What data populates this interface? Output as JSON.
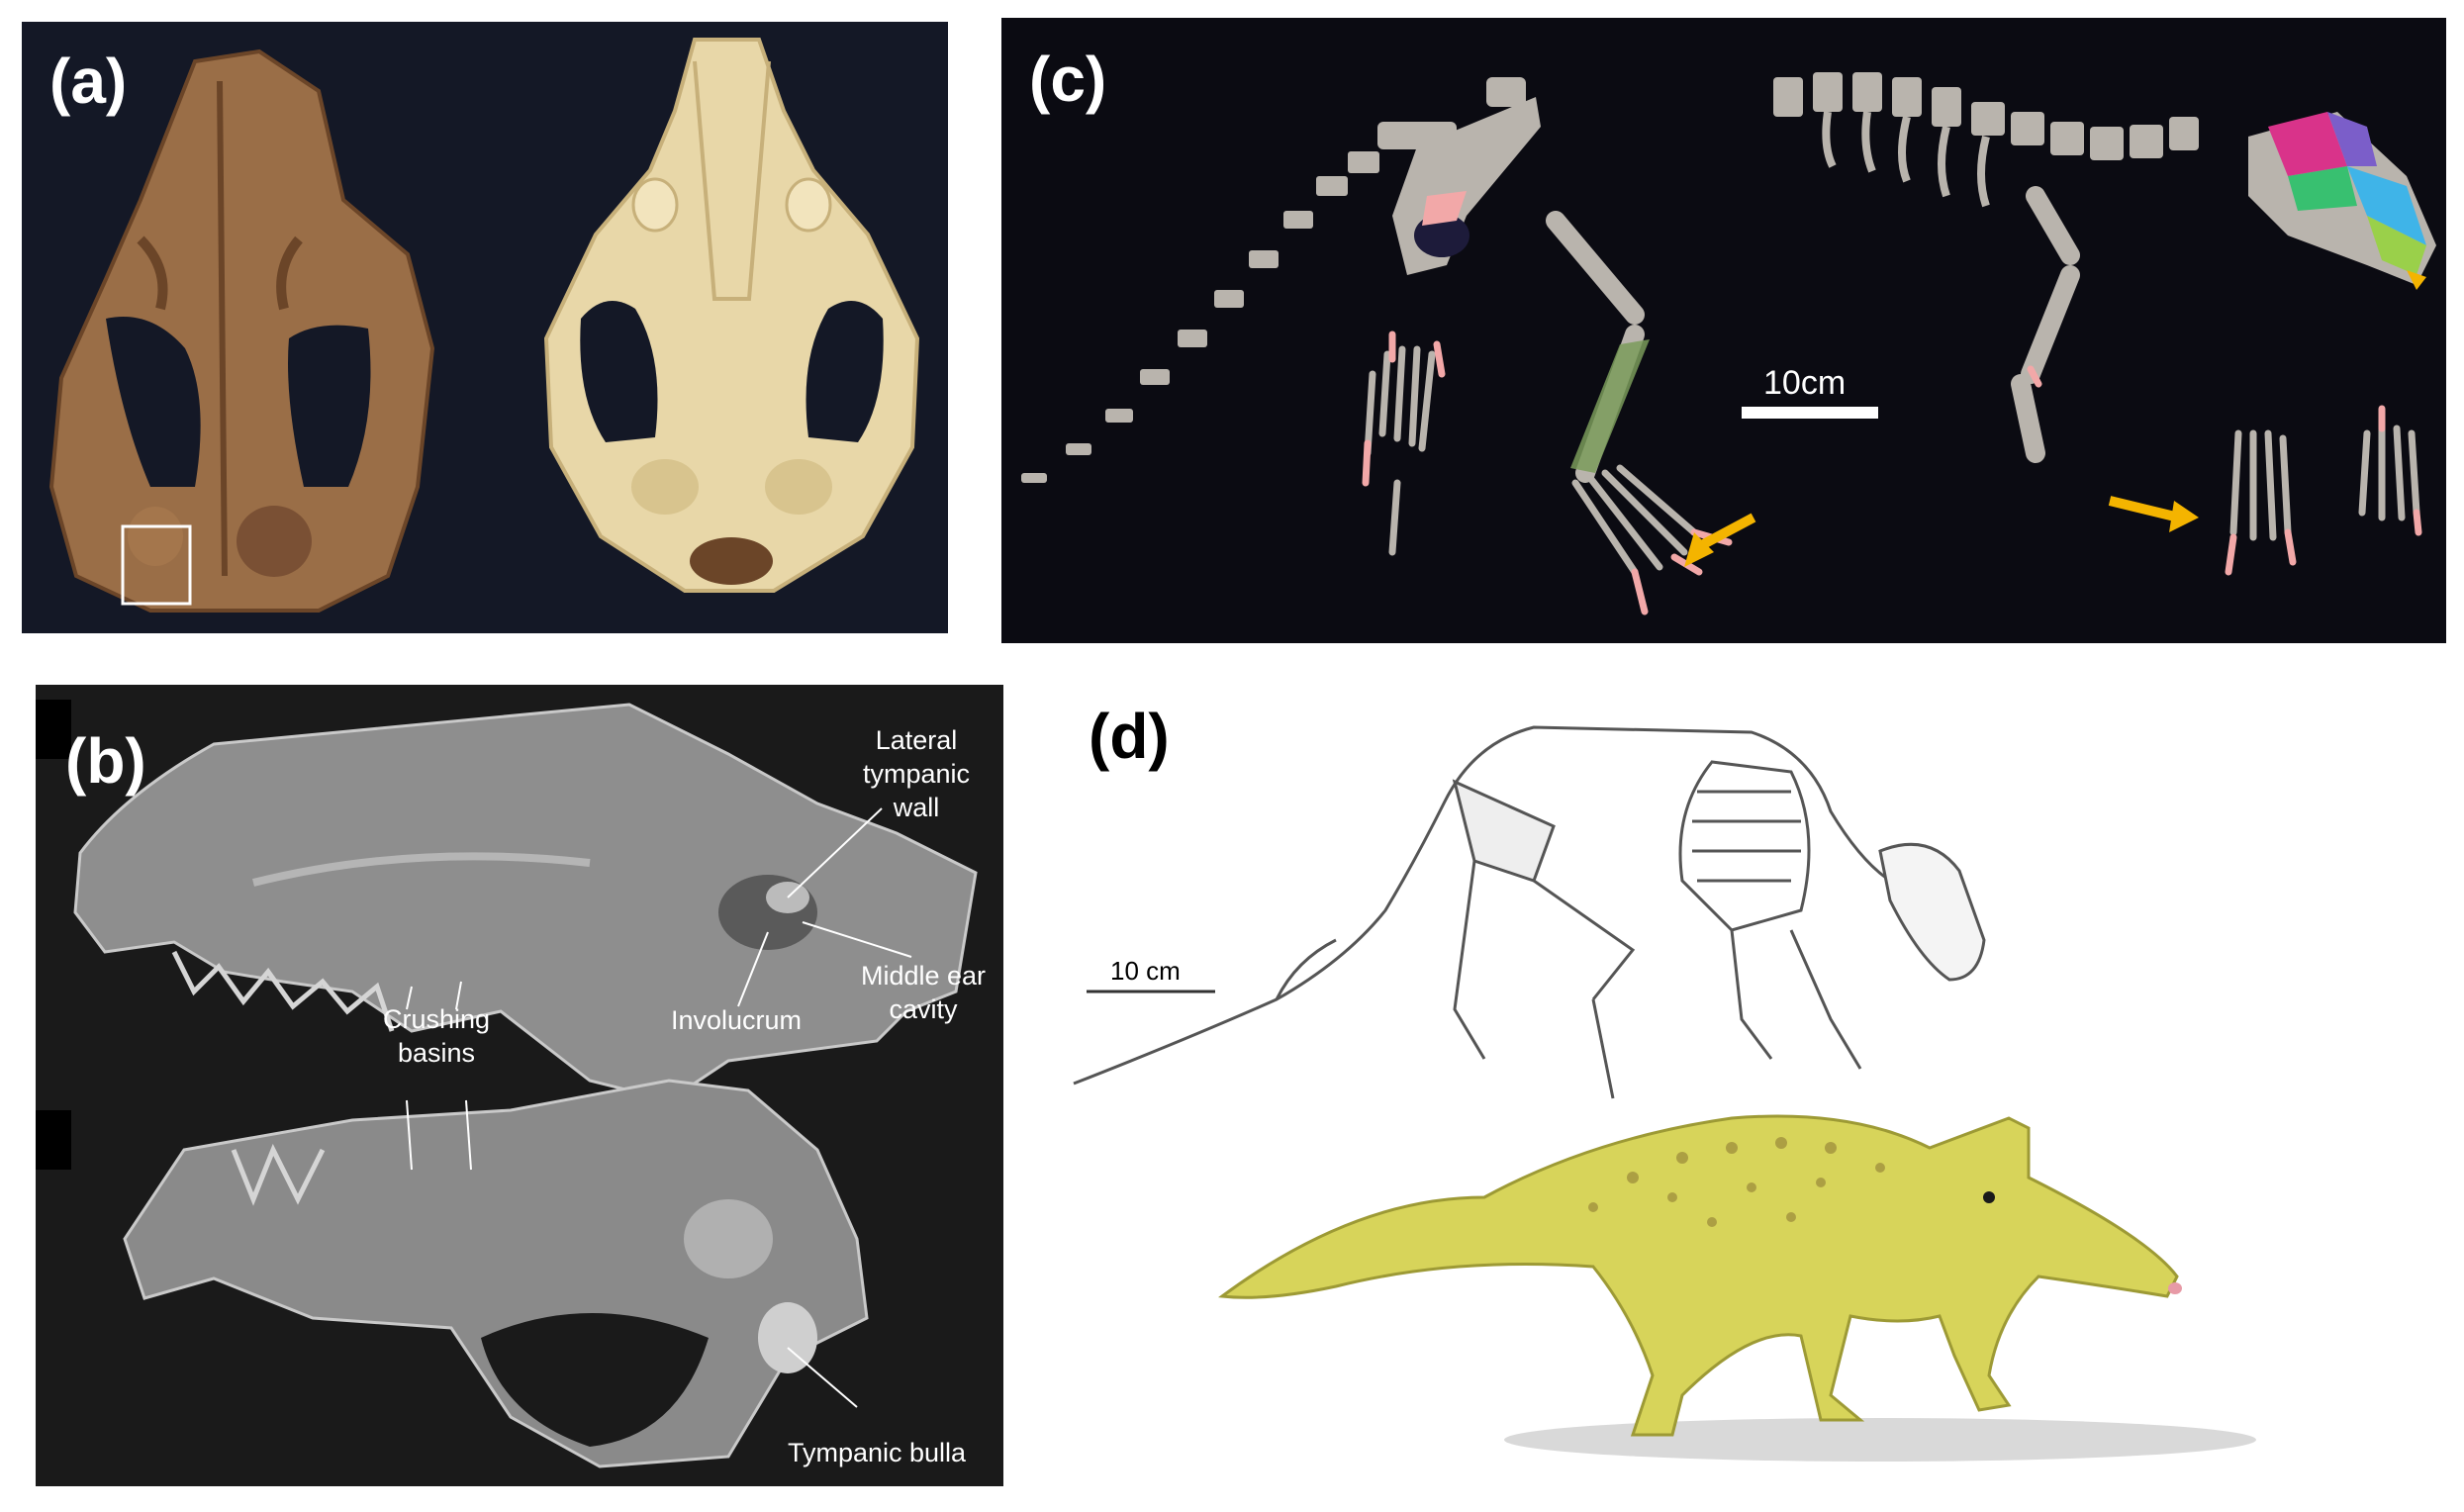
{
  "panels": {
    "a": {
      "label": "(a)"
    },
    "b": {
      "label": "(b)",
      "annotations": {
        "lateral_tympanic_wall": "Lateral\ntympanic\nwall",
        "middle_ear_cavity": "Middle ear\ncavity",
        "involucrum": "Involucrum",
        "crushing_basins": "Crushing\nbasins",
        "tympanic_bulla": "Tympanic bulla"
      }
    },
    "c": {
      "label": "(c)",
      "scale_bar": "10cm"
    },
    "d": {
      "label": "(d)",
      "scale_bar": "10 cm"
    }
  },
  "colors": {
    "fossil": "#9a6e47",
    "fossil_dark": "#6b4528",
    "skull_light": "#e8d7a8",
    "bone_grey": "#b9b4ad",
    "highlight_pink": "#f2a8a8",
    "arrow_yellow": "#f4b400",
    "creature_yellow": "#d7d45a"
  }
}
